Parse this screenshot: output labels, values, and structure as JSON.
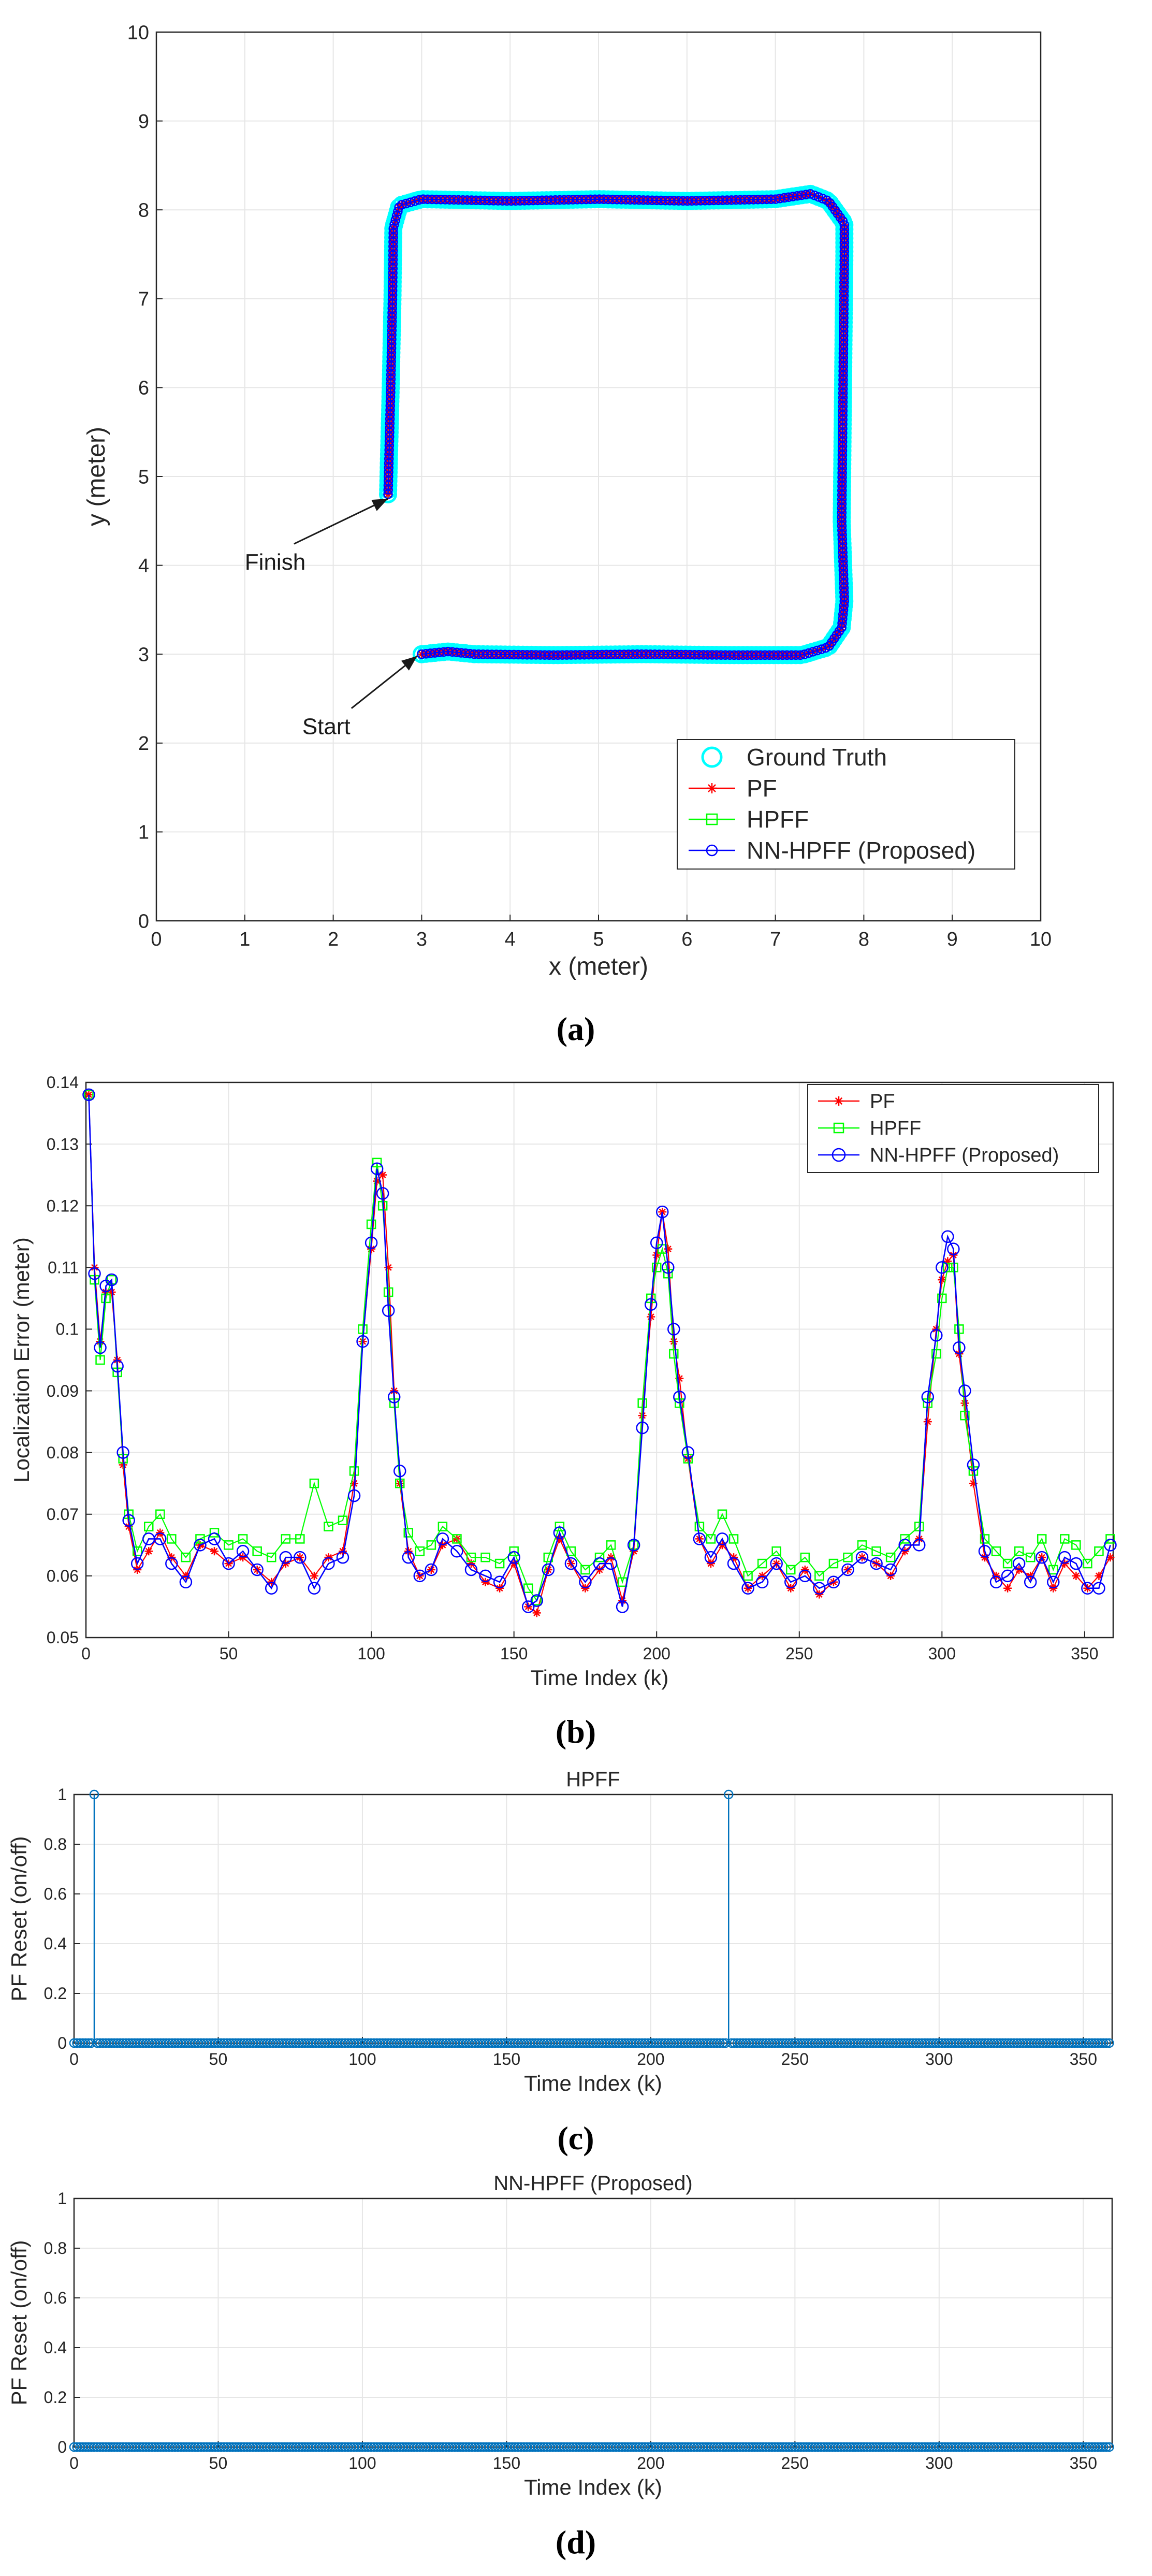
{
  "colors": {
    "ground_truth": "#00ffff",
    "pf": "#ff0000",
    "hpff": "#00ff00",
    "nn_hpff": "#0000ff",
    "stem": "#0072bd",
    "grid": "#e6e6e6",
    "axis": "#262626"
  },
  "chart_data": [
    {
      "id": "a",
      "type": "scatter",
      "caption": "(a)",
      "title": "",
      "xlabel": "x (meter)",
      "ylabel": "y (meter)",
      "xlim": [
        0,
        10
      ],
      "ylim": [
        0,
        10
      ],
      "xticks": [
        0,
        1,
        2,
        3,
        4,
        5,
        6,
        7,
        8,
        9,
        10
      ],
      "yticks": [
        0,
        1,
        2,
        3,
        4,
        5,
        6,
        7,
        8,
        9,
        10
      ],
      "grid": true,
      "legend": {
        "placement": "bottom-right",
        "entries": [
          "Ground Truth",
          "PF",
          "HPFF",
          "NN-HPFF (Proposed)"
        ]
      },
      "annotations": [
        {
          "text": "Finish",
          "text_at": [
            1.0,
            3.95
          ],
          "arrow_to": [
            2.62,
            4.75
          ]
        },
        {
          "text": "Start",
          "text_at": [
            1.65,
            2.1
          ],
          "arrow_to": [
            2.95,
            2.98
          ]
        }
      ],
      "path": [
        [
          3.0,
          3.0
        ],
        [
          3.3,
          3.03
        ],
        [
          3.6,
          3.0
        ],
        [
          4.5,
          2.99
        ],
        [
          5.5,
          3.0
        ],
        [
          6.5,
          2.99
        ],
        [
          7.3,
          2.99
        ],
        [
          7.6,
          3.08
        ],
        [
          7.75,
          3.3
        ],
        [
          7.78,
          3.6
        ],
        [
          7.75,
          4.5
        ],
        [
          7.76,
          5.5
        ],
        [
          7.77,
          6.5
        ],
        [
          7.78,
          7.5
        ],
        [
          7.78,
          7.85
        ],
        [
          7.6,
          8.1
        ],
        [
          7.4,
          8.18
        ],
        [
          7.0,
          8.12
        ],
        [
          6.0,
          8.1
        ],
        [
          5.0,
          8.12
        ],
        [
          4.0,
          8.1
        ],
        [
          3.0,
          8.12
        ],
        [
          2.75,
          8.05
        ],
        [
          2.68,
          7.8
        ],
        [
          2.67,
          7.0
        ],
        [
          2.65,
          6.0
        ],
        [
          2.63,
          5.2
        ],
        [
          2.62,
          4.8
        ]
      ],
      "series": [
        {
          "name": "Ground Truth",
          "marker": "o-large",
          "color": "#00ffff"
        },
        {
          "name": "PF",
          "marker": "*",
          "color": "#ff0000"
        },
        {
          "name": "HPFF",
          "marker": "s",
          "color": "#00ff00"
        },
        {
          "name": "NN-HPFF (Proposed)",
          "marker": "o",
          "color": "#0000ff"
        }
      ]
    },
    {
      "id": "b",
      "type": "line",
      "caption": "(b)",
      "title": "",
      "xlabel": "Time Index (k)",
      "ylabel": "Localization Error (meter)",
      "xlim": [
        0,
        360
      ],
      "ylim": [
        0.05,
        0.14
      ],
      "xticks": [
        0,
        50,
        100,
        150,
        200,
        250,
        300,
        350
      ],
      "yticks": [
        0.05,
        0.06,
        0.07,
        0.08,
        0.09,
        0.1,
        0.11,
        0.12,
        0.13,
        0.14
      ],
      "ytick_labels": [
        "0.05",
        "0.06",
        "0.07",
        "0.08",
        "0.09",
        "0.1",
        "0.11",
        "0.12",
        "0.13",
        "0.14"
      ],
      "grid": true,
      "legend": {
        "placement": "top-right",
        "entries": [
          "PF",
          "HPFF",
          "NN-HPFF (Proposed)"
        ]
      },
      "x": [
        1,
        3,
        5,
        7,
        9,
        11,
        13,
        15,
        18,
        22,
        26,
        30,
        35,
        40,
        45,
        50,
        55,
        60,
        65,
        70,
        75,
        80,
        85,
        90,
        94,
        97,
        100,
        102,
        104,
        106,
        108,
        110,
        113,
        117,
        121,
        125,
        130,
        135,
        140,
        145,
        150,
        155,
        158,
        162,
        166,
        170,
        175,
        180,
        184,
        188,
        192,
        195,
        198,
        200,
        202,
        204,
        206,
        208,
        211,
        215,
        219,
        223,
        227,
        232,
        237,
        242,
        247,
        252,
        257,
        262,
        267,
        272,
        277,
        282,
        287,
        292,
        295,
        298,
        300,
        302,
        304,
        306,
        308,
        311,
        315,
        319,
        323,
        327,
        331,
        335,
        339,
        343,
        347,
        351,
        355,
        359
      ],
      "series": [
        {
          "name": "PF",
          "values": [
            0.138,
            0.11,
            0.098,
            0.106,
            0.106,
            0.095,
            0.078,
            0.068,
            0.061,
            0.064,
            0.067,
            0.063,
            0.06,
            0.065,
            0.064,
            0.062,
            0.063,
            0.061,
            0.059,
            0.062,
            0.063,
            0.06,
            0.063,
            0.064,
            0.075,
            0.098,
            0.113,
            0.124,
            0.125,
            0.11,
            0.09,
            0.075,
            0.064,
            0.06,
            0.061,
            0.065,
            0.066,
            0.062,
            0.059,
            0.058,
            0.062,
            0.055,
            0.054,
            0.061,
            0.066,
            0.062,
            0.058,
            0.061,
            0.063,
            0.056,
            0.064,
            0.086,
            0.102,
            0.112,
            0.119,
            0.113,
            0.098,
            0.092,
            0.079,
            0.066,
            0.062,
            0.065,
            0.063,
            0.058,
            0.06,
            0.062,
            0.058,
            0.061,
            0.057,
            0.059,
            0.061,
            0.063,
            0.062,
            0.06,
            0.064,
            0.066,
            0.085,
            0.1,
            0.108,
            0.111,
            0.112,
            0.096,
            0.088,
            0.075,
            0.063,
            0.06,
            0.058,
            0.061,
            0.06,
            0.063,
            0.058,
            0.062,
            0.06,
            0.058,
            0.06,
            0.063
          ]
        },
        {
          "name": "HPFF",
          "values": [
            0.138,
            0.108,
            0.095,
            0.105,
            0.108,
            0.093,
            0.079,
            0.07,
            0.064,
            0.068,
            0.07,
            0.066,
            0.063,
            0.066,
            0.067,
            0.065,
            0.066,
            0.064,
            0.063,
            0.066,
            0.066,
            0.075,
            0.068,
            0.069,
            0.077,
            0.1,
            0.117,
            0.127,
            0.12,
            0.106,
            0.088,
            0.075,
            0.067,
            0.064,
            0.065,
            0.068,
            0.066,
            0.063,
            0.063,
            0.062,
            0.064,
            0.058,
            0.056,
            0.063,
            0.068,
            0.064,
            0.061,
            0.063,
            0.065,
            0.059,
            0.065,
            0.088,
            0.105,
            0.11,
            0.113,
            0.109,
            0.096,
            0.088,
            0.079,
            0.068,
            0.066,
            0.07,
            0.066,
            0.06,
            0.062,
            0.064,
            0.061,
            0.063,
            0.06,
            0.062,
            0.063,
            0.065,
            0.064,
            0.063,
            0.066,
            0.068,
            0.088,
            0.096,
            0.105,
            0.11,
            0.11,
            0.1,
            0.086,
            0.077,
            0.066,
            0.064,
            0.062,
            0.064,
            0.063,
            0.066,
            0.061,
            0.066,
            0.065,
            0.062,
            0.064,
            0.066
          ]
        },
        {
          "name": "NN-HPFF (Proposed)",
          "values": [
            0.138,
            0.109,
            0.097,
            0.107,
            0.108,
            0.094,
            0.08,
            0.069,
            0.062,
            0.066,
            0.066,
            0.062,
            0.059,
            0.065,
            0.066,
            0.062,
            0.064,
            0.061,
            0.058,
            0.063,
            0.063,
            0.058,
            0.062,
            0.063,
            0.073,
            0.098,
            0.114,
            0.126,
            0.122,
            0.103,
            0.089,
            0.077,
            0.063,
            0.06,
            0.061,
            0.066,
            0.064,
            0.061,
            0.06,
            0.059,
            0.063,
            0.055,
            0.056,
            0.061,
            0.067,
            0.062,
            0.059,
            0.062,
            0.062,
            0.055,
            0.065,
            0.084,
            0.104,
            0.114,
            0.119,
            0.11,
            0.1,
            0.089,
            0.08,
            0.066,
            0.063,
            0.066,
            0.062,
            0.058,
            0.059,
            0.062,
            0.059,
            0.06,
            0.058,
            0.059,
            0.061,
            0.063,
            0.062,
            0.061,
            0.065,
            0.065,
            0.089,
            0.099,
            0.11,
            0.115,
            0.113,
            0.097,
            0.09,
            0.078,
            0.064,
            0.059,
            0.06,
            0.062,
            0.059,
            0.063,
            0.059,
            0.063,
            0.062,
            0.058,
            0.058,
            0.065
          ]
        }
      ]
    },
    {
      "id": "c",
      "type": "stem",
      "caption": "(c)",
      "title": "HPFF",
      "xlabel": "Time Index (k)",
      "ylabel": "PF Reset (on/off)",
      "xlim": [
        0,
        360
      ],
      "ylim": [
        0,
        1
      ],
      "xticks": [
        0,
        50,
        100,
        150,
        200,
        250,
        300,
        350
      ],
      "yticks": [
        0,
        0.2,
        0.4,
        0.6,
        0.8,
        1
      ],
      "ytick_labels": [
        "0",
        "0.2",
        "0.4",
        "0.6",
        "0.8",
        "1"
      ],
      "grid": true,
      "n_samples": 360,
      "reset_indices": [
        7,
        227
      ]
    },
    {
      "id": "d",
      "type": "stem",
      "caption": "(d)",
      "title": "NN-HPFF (Proposed)",
      "xlabel": "Time Index (k)",
      "ylabel": "PF Reset (on/off)",
      "xlim": [
        0,
        360
      ],
      "ylim": [
        0,
        1
      ],
      "xticks": [
        0,
        50,
        100,
        150,
        200,
        250,
        300,
        350
      ],
      "yticks": [
        0,
        0.2,
        0.4,
        0.6,
        0.8,
        1
      ],
      "ytick_labels": [
        "0",
        "0.2",
        "0.4",
        "0.6",
        "0.8",
        "1"
      ],
      "grid": true,
      "n_samples": 360,
      "reset_indices": []
    }
  ]
}
